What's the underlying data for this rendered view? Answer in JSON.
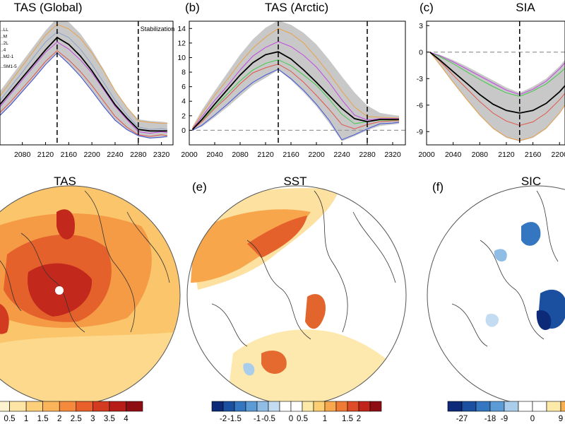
{
  "chart_data": [
    {
      "type": "line",
      "panel": "a",
      "title": "TAS (Global)",
      "x_range": [
        2000,
        2340
      ],
      "y_range": [
        -1,
        15
      ],
      "x_ticks": [
        "2080",
        "2120",
        "2160",
        "2200",
        "2240",
        "2280",
        "2320"
      ],
      "legend": [
        "..LL",
        "..M",
        "..2L",
        "..4",
        "..M2-1",
        "..SM1-5"
      ],
      "annotations": [
        {
          "x": 2140,
          "style": "dashed"
        },
        {
          "x": 2280,
          "style": "dashed",
          "text": "Stabilization"
        }
      ],
      "x": [
        2000,
        2020,
        2040,
        2060,
        2080,
        2100,
        2120,
        2140,
        2160,
        2180,
        2200,
        2220,
        2240,
        2260,
        2280,
        2300,
        2320,
        2330
      ],
      "band_upper": [
        1.8,
        3.8,
        5.8,
        7.8,
        9.8,
        11.8,
        13.8,
        15.4,
        14.9,
        13.4,
        11.3,
        8.8,
        6.1,
        3.9,
        2.3,
        2.1,
        2.0,
        1.9
      ],
      "band_lower": [
        0,
        1.2,
        2.6,
        4.1,
        5.8,
        7.5,
        9.3,
        10.8,
        9.4,
        7.8,
        5.9,
        3.9,
        2.1,
        0.9,
        0.1,
        -0.2,
        -0.1,
        0
      ],
      "series": [
        {
          "name": "ensemble mean",
          "color": "#000000",
          "values": [
            1.0,
            2.5,
            4.1,
            5.9,
            7.7,
            9.5,
            11.3,
            12.9,
            12.0,
            10.5,
            8.6,
            6.4,
            4.2,
            2.5,
            1.0,
            0.8,
            0.8,
            0.8
          ]
        },
        {
          "name": "member 1",
          "color": "#e8a24a",
          "values": [
            1.6,
            3.4,
            5.2,
            7.2,
            9.2,
            11.2,
            13.2,
            14.6,
            14.0,
            12.8,
            10.9,
            8.6,
            6.0,
            3.9,
            2.1,
            1.9,
            1.8,
            1.8
          ]
        },
        {
          "name": "member 2",
          "color": "#8ea3c8",
          "values": [
            1.2,
            2.9,
            4.6,
            6.5,
            8.4,
            10.4,
            12.3,
            13.6,
            12.9,
            11.4,
            9.4,
            7.1,
            4.8,
            2.9,
            1.3,
            1.0,
            1.1,
            1.0
          ]
        },
        {
          "name": "member 3",
          "color": "#c14adf",
          "values": [
            0.8,
            2.2,
            3.8,
            5.6,
            7.4,
            9.2,
            11.0,
            12.3,
            11.4,
            10.0,
            8.3,
            6.2,
            4.0,
            2.3,
            0.7,
            0.5,
            0.7,
            0.6
          ]
        },
        {
          "name": "member 4",
          "color": "#e0564b",
          "values": [
            0.4,
            1.7,
            3.1,
            4.6,
            6.3,
            8.0,
            9.8,
            11.2,
            10.0,
            8.5,
            6.7,
            4.7,
            2.7,
            1.3,
            0.3,
            0.1,
            0.3,
            0.2
          ]
        },
        {
          "name": "member 5",
          "color": "#4051d9",
          "values": [
            0.1,
            1.3,
            2.7,
            4.2,
            5.9,
            7.6,
            9.4,
            10.9,
            9.5,
            7.9,
            6.0,
            4.0,
            2.2,
            1.0,
            0.2,
            -0.1,
            0.0,
            0.1
          ]
        }
      ]
    },
    {
      "type": "line",
      "panel": "b",
      "title": "TAS (Arctic)",
      "label": "(b)",
      "x_range": [
        2000,
        2340
      ],
      "y_range": [
        -2,
        15
      ],
      "x_ticks": [
        "2000",
        "2040",
        "2080",
        "2120",
        "2160",
        "2200",
        "2240",
        "2280",
        "2320"
      ],
      "y_ticks": [
        "0",
        "2",
        "4",
        "6",
        "8",
        "10",
        "12",
        "14"
      ],
      "zero_line": 0,
      "annotations": [
        {
          "x": 2140,
          "style": "dashed"
        },
        {
          "x": 2280,
          "style": "dashed"
        }
      ],
      "x": [
        2005,
        2020,
        2040,
        2060,
        2080,
        2100,
        2120,
        2140,
        2160,
        2180,
        2200,
        2220,
        2240,
        2260,
        2280,
        2300,
        2320,
        2330
      ],
      "band_upper": [
        0.5,
        2.8,
        5.4,
        7.9,
        10.4,
        12.5,
        14.1,
        15.1,
        14.5,
        13.4,
        11.8,
        9.7,
        7.4,
        5.2,
        3.4,
        2.4,
        2.1,
        2.0
      ],
      "band_lower": [
        0,
        0.5,
        1.8,
        3.2,
        4.7,
        6.2,
        7.2,
        8.3,
        6.9,
        5.2,
        3.3,
        1.0,
        -1.5,
        -0.8,
        0,
        0.6,
        0.8,
        0.9
      ],
      "series": [
        {
          "name": "ensemble mean",
          "color": "#000000",
          "values": [
            0.1,
            1.5,
            3.6,
            5.6,
            7.6,
            9.3,
            10.4,
            10.8,
            9.8,
            8.3,
            6.6,
            4.8,
            3.0,
            1.6,
            1.2,
            1.5,
            1.5,
            1.5
          ]
        },
        {
          "name": "member 1",
          "color": "#e8a24a",
          "values": [
            0.3,
            2.3,
            4.8,
            7.0,
            9.3,
            11.3,
            12.8,
            14.0,
            13.3,
            12.0,
            10.0,
            7.8,
            5.4,
            3.2,
            1.9,
            1.8,
            1.7,
            1.7
          ]
        },
        {
          "name": "member 2",
          "color": "#c14adf",
          "values": [
            0.2,
            1.9,
            4.1,
            6.1,
            8.3,
            10.2,
            11.4,
            12.2,
            11.5,
            10.3,
            8.7,
            6.6,
            4.2,
            2.1,
            1.4,
            1.6,
            1.6,
            1.6
          ]
        },
        {
          "name": "member 3",
          "color": "#43c84a",
          "values": [
            0.1,
            1.4,
            3.2,
            5.0,
            6.8,
            8.3,
            9.2,
            9.7,
            8.9,
            7.6,
            6.2,
            4.3,
            2.2,
            0.9,
            1.2,
            1.4,
            1.4,
            1.3
          ]
        },
        {
          "name": "member 4",
          "color": "#e0564b",
          "values": [
            0.1,
            1.2,
            3.0,
            4.6,
            6.4,
            7.9,
            8.6,
            9.1,
            8.1,
            6.6,
            4.8,
            2.9,
            0.8,
            0.2,
            0.8,
            1.2,
            1.3,
            1.3
          ]
        },
        {
          "name": "member 5",
          "color": "#4051d9",
          "values": [
            0.0,
            0.7,
            2.1,
            3.6,
            5.2,
            6.6,
            7.6,
            8.4,
            7.1,
            5.5,
            3.6,
            1.4,
            -1.3,
            -0.6,
            0.2,
            0.9,
            1.0,
            1.1
          ]
        }
      ]
    },
    {
      "type": "line",
      "panel": "c",
      "title": "SIA",
      "label": "(c)",
      "x_range": [
        2000,
        2340
      ],
      "y_range": [
        -10.5,
        3.5
      ],
      "x_ticks": [
        "2000",
        "2040",
        "2080",
        "2120",
        "2160",
        "2200"
      ],
      "y_ticks": [
        "3",
        "0",
        "-3",
        "-6",
        "-9"
      ],
      "zero_line": 0,
      "annotations": [
        {
          "x": 2140,
          "style": "dashed"
        }
      ],
      "x": [
        2005,
        2020,
        2040,
        2060,
        2080,
        2100,
        2120,
        2140,
        2160,
        2180,
        2200,
        2220,
        2240
      ],
      "band_upper": [
        0,
        -0.3,
        -0.9,
        -1.6,
        -2.4,
        -3.2,
        -4.0,
        -4.6,
        -3.9,
        -3.0,
        -1.6,
        0.2,
        2.0
      ],
      "band_lower": [
        0,
        -1.5,
        -3.5,
        -5.4,
        -7.2,
        -8.7,
        -9.7,
        -10.1,
        -9.7,
        -8.7,
        -7.0,
        -4.8,
        -2.6
      ],
      "series": [
        {
          "name": "ensemble mean",
          "color": "#000000",
          "values": [
            0,
            -0.9,
            -2.2,
            -3.5,
            -4.8,
            -5.9,
            -6.6,
            -6.9,
            -6.6,
            -5.8,
            -4.5,
            -2.8,
            -1.0
          ]
        },
        {
          "name": "member 1",
          "color": "#43c84a",
          "values": [
            0,
            -0.5,
            -1.3,
            -2.2,
            -3.1,
            -3.9,
            -4.6,
            -5.0,
            -4.4,
            -3.6,
            -2.4,
            -1.0,
            0.6
          ]
        },
        {
          "name": "member 2",
          "color": "#c14adf",
          "values": [
            0,
            -0.4,
            -1.1,
            -1.9,
            -2.7,
            -3.5,
            -4.3,
            -4.8,
            -4.2,
            -3.3,
            -1.9,
            -0.2,
            1.8
          ]
        },
        {
          "name": "member 3",
          "color": "#e0564b",
          "values": [
            0,
            -1.0,
            -2.6,
            -4.1,
            -5.6,
            -6.9,
            -7.8,
            -8.3,
            -7.9,
            -6.9,
            -5.4,
            -3.6,
            -1.8
          ]
        },
        {
          "name": "member 4",
          "color": "#e8a24a",
          "values": [
            0,
            -1.4,
            -3.4,
            -5.3,
            -7.1,
            -8.6,
            -9.6,
            -10.0,
            -9.6,
            -8.6,
            -6.9,
            -4.7,
            -2.5
          ]
        }
      ]
    },
    {
      "type": "heatmap",
      "panel": "d",
      "title": "TAS",
      "colorbar_ticks": [
        "0.5",
        "1",
        "1.5",
        "2",
        "2.5",
        "3",
        "3.5",
        "4"
      ],
      "colorbar_colors": [
        "#fdf2cf",
        "#fde5a6",
        "#fccf7a",
        "#fbb45a",
        "#f58a3c",
        "#e9602a",
        "#d23b20",
        "#b61d19",
        "#8e0d13"
      ]
    },
    {
      "type": "heatmap",
      "panel": "e",
      "title": "SST",
      "label": "(e)",
      "colorbar_ticks": [
        "-2",
        "-1.5",
        "-1",
        "-0.5",
        "0",
        "0.5",
        "1",
        "1.5",
        "2"
      ],
      "colorbar_colors": [
        "#0c2a78",
        "#1b4fa0",
        "#3576c1",
        "#5c9bd6",
        "#8fbde6",
        "#c3dcf1",
        "#ffffff",
        "#ffffff",
        "#fdeaa8",
        "#fbcf72",
        "#f8a84c",
        "#ef7a36",
        "#dd4c26",
        "#c0241b",
        "#8e0d13"
      ]
    },
    {
      "type": "heatmap",
      "panel": "f",
      "title": "SIC",
      "label": "(f)",
      "colorbar_ticks": [
        "-27",
        "-18",
        "-9",
        "0",
        "9"
      ],
      "colorbar_colors": [
        "#0c2a78",
        "#1b4fa0",
        "#3576c1",
        "#5c9bd6",
        "#a9cdea",
        "#ffffff",
        "#ffffff",
        "#fdeaa8",
        "#f8b050"
      ]
    }
  ],
  "labels": {
    "stabilization": "Stabilization",
    "title_a": "TAS (Global)",
    "title_b": "TAS (Arctic)",
    "title_c": "SIA",
    "title_d": "TAS",
    "title_e": "SST",
    "title_f": "SIC",
    "label_b": "(b)",
    "label_c": "(c)",
    "label_e": "(e)",
    "label_f": "(f)"
  },
  "colors": {
    "band_fill": "#c8c8c8",
    "panel_border": "#000000"
  }
}
